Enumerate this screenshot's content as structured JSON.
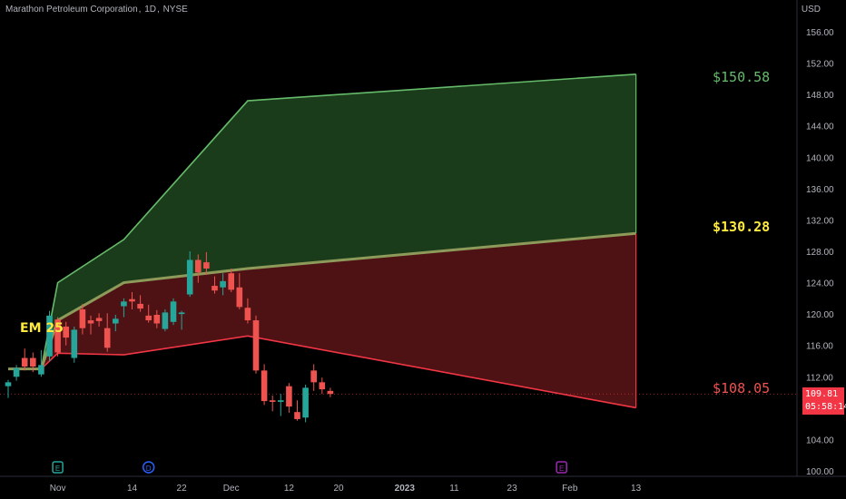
{
  "header": {
    "symbol_title": "Marathon Petroleum Corporation",
    "interval": "1D",
    "exchange": "NYSE",
    "currency": "USD"
  },
  "last_price": {
    "value": "109.81",
    "countdown": "05:58:14",
    "color": "#f23645"
  },
  "annotations": {
    "upper_label": "$150.58",
    "mid_label": "$130.28",
    "lower_label": "$108.05",
    "em_label": "EM 25"
  },
  "colors": {
    "background": "#000000",
    "up_candle": "#26a69a",
    "down_candle": "#ef5350",
    "upper_zone_fill": "#1e4620",
    "upper_zone_line": "#66bb6a",
    "lower_zone_fill": "#5c1518",
    "lower_zone_line": "#f23645",
    "mid_line": "#8d9a5a",
    "axis_text": "#b2b5be"
  },
  "chart_data": {
    "type": "candlestick",
    "ylim": [
      100,
      158
    ],
    "y_ticks": [
      "156.00",
      "152.00",
      "148.00",
      "144.00",
      "140.00",
      "136.00",
      "132.00",
      "128.00",
      "124.00",
      "120.00",
      "116.00",
      "112.00",
      "108.00",
      "104.00",
      "100.00"
    ],
    "x_ticks": [
      "Nov",
      "14",
      "22",
      "Dec",
      "12",
      "20",
      "2023",
      "11",
      "23",
      "Feb",
      "13"
    ],
    "x_tick_dates": [
      "2022-11-01",
      "2022-11-14",
      "2022-11-22",
      "2022-12-01",
      "2022-12-12",
      "2022-12-20",
      "2023-01-03",
      "2023-01-11",
      "2023-01-23",
      "2023-02-01",
      "2023-02-13"
    ],
    "candles": [
      {
        "date": "2022-10-24",
        "o": 110.8,
        "h": 111.6,
        "l": 109.3,
        "c": 111.3
      },
      {
        "date": "2022-10-25",
        "o": 112.0,
        "h": 113.5,
        "l": 111.5,
        "c": 113.1
      },
      {
        "date": "2022-10-26",
        "o": 114.4,
        "h": 115.6,
        "l": 112.8,
        "c": 113.3
      },
      {
        "date": "2022-10-27",
        "o": 114.4,
        "h": 115.1,
        "l": 112.6,
        "c": 113.3
      },
      {
        "date": "2022-10-28",
        "o": 112.3,
        "h": 115.4,
        "l": 112.0,
        "c": 113.5
      },
      {
        "date": "2022-10-31",
        "o": 114.6,
        "h": 120.4,
        "l": 114.0,
        "c": 119.8
      },
      {
        "date": "2022-11-01",
        "o": 119.3,
        "h": 119.6,
        "l": 114.6,
        "c": 115.1
      },
      {
        "date": "2022-11-02",
        "o": 118.4,
        "h": 119.0,
        "l": 116.0,
        "c": 117.0
      },
      {
        "date": "2022-11-03",
        "o": 114.4,
        "h": 118.4,
        "l": 113.8,
        "c": 118.0
      },
      {
        "date": "2022-11-04",
        "o": 120.6,
        "h": 121.3,
        "l": 117.4,
        "c": 118.2
      },
      {
        "date": "2022-11-07",
        "o": 119.2,
        "h": 119.8,
        "l": 117.4,
        "c": 118.8
      },
      {
        "date": "2022-11-08",
        "o": 119.5,
        "h": 120.1,
        "l": 118.4,
        "c": 119.1
      },
      {
        "date": "2022-11-09",
        "o": 118.2,
        "h": 120.1,
        "l": 115.2,
        "c": 115.7
      },
      {
        "date": "2022-11-10",
        "o": 118.8,
        "h": 119.9,
        "l": 117.8,
        "c": 119.4
      },
      {
        "date": "2022-11-11",
        "o": 121.0,
        "h": 122.0,
        "l": 119.6,
        "c": 121.6
      },
      {
        "date": "2022-11-14",
        "o": 121.9,
        "h": 122.8,
        "l": 120.6,
        "c": 121.6
      },
      {
        "date": "2022-11-15",
        "o": 121.3,
        "h": 122.4,
        "l": 120.3,
        "c": 120.7
      },
      {
        "date": "2022-11-16",
        "o": 119.8,
        "h": 121.2,
        "l": 118.9,
        "c": 119.2
      },
      {
        "date": "2022-11-17",
        "o": 119.9,
        "h": 120.5,
        "l": 118.2,
        "c": 118.8
      },
      {
        "date": "2022-11-18",
        "o": 118.1,
        "h": 120.6,
        "l": 117.8,
        "c": 120.2
      },
      {
        "date": "2022-11-21",
        "o": 119.0,
        "h": 122.0,
        "l": 118.6,
        "c": 121.6
      },
      {
        "date": "2022-11-22",
        "o": 120.0,
        "h": 120.4,
        "l": 118.0,
        "c": 120.2
      },
      {
        "date": "2022-11-23",
        "o": 122.5,
        "h": 128.0,
        "l": 122.2,
        "c": 126.9
      },
      {
        "date": "2022-11-25",
        "o": 126.9,
        "h": 127.6,
        "l": 124.0,
        "c": 125.3
      },
      {
        "date": "2022-11-28",
        "o": 126.6,
        "h": 127.9,
        "l": 125.0,
        "c": 125.8
      },
      {
        "date": "2022-11-29",
        "o": 123.6,
        "h": 124.8,
        "l": 122.6,
        "c": 123.0
      },
      {
        "date": "2022-11-30",
        "o": 123.4,
        "h": 125.2,
        "l": 122.4,
        "c": 124.2
      },
      {
        "date": "2022-12-01",
        "o": 125.2,
        "h": 125.8,
        "l": 122.8,
        "c": 123.1
      },
      {
        "date": "2022-12-02",
        "o": 123.4,
        "h": 125.2,
        "l": 120.6,
        "c": 120.9
      },
      {
        "date": "2022-12-05",
        "o": 120.8,
        "h": 122.0,
        "l": 118.8,
        "c": 119.2
      },
      {
        "date": "2022-12-06",
        "o": 119.2,
        "h": 119.8,
        "l": 112.4,
        "c": 112.8
      },
      {
        "date": "2022-12-07",
        "o": 112.8,
        "h": 113.6,
        "l": 108.4,
        "c": 108.9
      },
      {
        "date": "2022-12-08",
        "o": 109.0,
        "h": 109.6,
        "l": 107.6,
        "c": 108.8
      },
      {
        "date": "2022-12-09",
        "o": 108.8,
        "h": 109.8,
        "l": 107.0,
        "c": 109.0
      },
      {
        "date": "2022-12-12",
        "o": 110.8,
        "h": 111.2,
        "l": 107.4,
        "c": 108.2
      },
      {
        "date": "2022-12-13",
        "o": 107.5,
        "h": 109.0,
        "l": 106.4,
        "c": 106.6
      },
      {
        "date": "2022-12-14",
        "o": 106.8,
        "h": 111.0,
        "l": 106.2,
        "c": 110.6
      },
      {
        "date": "2022-12-15",
        "o": 112.8,
        "h": 113.6,
        "l": 110.2,
        "c": 111.3
      },
      {
        "date": "2022-12-16",
        "o": 111.3,
        "h": 111.9,
        "l": 109.8,
        "c": 110.4
      },
      {
        "date": "2022-12-19",
        "o": 110.2,
        "h": 110.6,
        "l": 109.4,
        "c": 109.81
      }
    ],
    "zones": {
      "upper_boundary": [
        [
          0,
          113.0
        ],
        [
          4,
          113.0
        ],
        [
          6,
          124.0
        ],
        [
          14,
          129.5
        ],
        [
          29,
          147.2
        ],
        [
          76,
          150.58
        ]
      ],
      "mid_boundary": [
        [
          0,
          113.0
        ],
        [
          4,
          113.0
        ],
        [
          6,
          119.2
        ],
        [
          14,
          124.0
        ],
        [
          29,
          125.8
        ],
        [
          76,
          130.28
        ]
      ],
      "lower_boundary": [
        [
          0,
          113.0
        ],
        [
          4,
          113.0
        ],
        [
          6,
          115.0
        ],
        [
          14,
          114.8
        ],
        [
          29,
          117.2
        ],
        [
          76,
          108.05
        ]
      ]
    },
    "event_markers": [
      {
        "label": "E",
        "date": "2022-11-01",
        "color": "#26a69a"
      },
      {
        "label": "D",
        "date": "2022-11-16",
        "color": "#2962ff"
      },
      {
        "label": "E",
        "date": "2023-01-31",
        "color": "#9c27b0"
      }
    ],
    "last_price_line": 109.81
  }
}
